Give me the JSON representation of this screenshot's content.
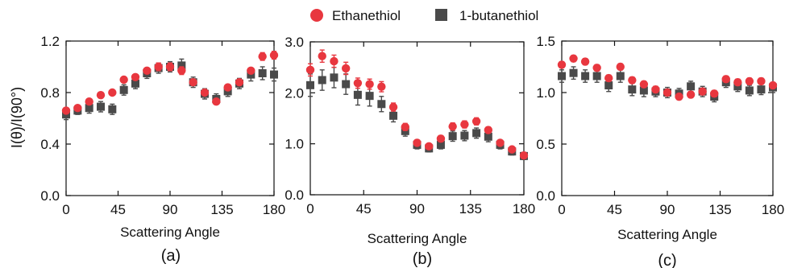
{
  "legend": {
    "items": [
      {
        "name": "Ethanethiol",
        "color": "#e8373f",
        "marker": "circle"
      },
      {
        "name": "1-butanethiol",
        "color": "#4a4a4a",
        "marker": "square"
      }
    ]
  },
  "ylabel": "I(θ)/I(90°)",
  "chart_data": [
    {
      "type": "scatter",
      "panel_label": "(a)",
      "xlabel": "Scattering Angle",
      "ylabel": "I(θ)/I(90°)",
      "xlim": [
        0,
        180
      ],
      "ylim": [
        0,
        1.2
      ],
      "xticks": [
        0,
        45,
        90,
        135,
        180
      ],
      "xtick_labels": [
        "0",
        "45",
        "90",
        "135",
        "180"
      ],
      "yticks": [
        0,
        0.4,
        0.8,
        1.2
      ],
      "ytick_labels": [
        "0.0",
        "0.4",
        "0.8",
        "1.2"
      ],
      "series": [
        {
          "name": "Ethanethiol",
          "x": [
            0,
            10,
            20,
            30,
            40,
            50,
            60,
            70,
            80,
            90,
            100,
            110,
            120,
            130,
            140,
            150,
            160,
            170,
            180
          ],
          "y": [
            0.66,
            0.68,
            0.73,
            0.78,
            0.8,
            0.9,
            0.92,
            0.97,
            1.0,
            1.0,
            0.97,
            0.88,
            0.8,
            0.73,
            0.84,
            0.88,
            0.97,
            1.08,
            1.09
          ],
          "err": [
            0.02,
            0.02,
            0.02,
            0.02,
            0.02,
            0.02,
            0.02,
            0.02,
            0.03,
            0.03,
            0.03,
            0.02,
            0.02,
            0.02,
            0.02,
            0.02,
            0.02,
            0.03,
            0.03
          ]
        },
        {
          "name": "1-butanethiol",
          "x": [
            0,
            10,
            20,
            30,
            40,
            50,
            60,
            70,
            80,
            90,
            100,
            110,
            120,
            130,
            140,
            150,
            160,
            170,
            180
          ],
          "y": [
            0.63,
            0.66,
            0.68,
            0.69,
            0.67,
            0.82,
            0.87,
            0.95,
            0.99,
            1.0,
            1.01,
            0.88,
            0.79,
            0.75,
            0.81,
            0.87,
            0.94,
            0.95,
            0.94
          ],
          "err": [
            0.04,
            0.03,
            0.04,
            0.04,
            0.04,
            0.04,
            0.04,
            0.04,
            0.04,
            0.04,
            0.05,
            0.04,
            0.04,
            0.04,
            0.04,
            0.04,
            0.05,
            0.05,
            0.05
          ]
        }
      ]
    },
    {
      "type": "scatter",
      "panel_label": "(b)",
      "xlabel": "Scattering Angle",
      "ylabel": "",
      "xlim": [
        0,
        180
      ],
      "ylim": [
        0,
        3.0
      ],
      "xticks": [
        0,
        45,
        90,
        135,
        180
      ],
      "xtick_labels": [
        "0",
        "45",
        "90",
        "135",
        "180"
      ],
      "yticks": [
        0,
        1.0,
        2.0,
        3.0
      ],
      "ytick_labels": [
        "0.0",
        "1.0",
        "2.0",
        "3.0"
      ],
      "series": [
        {
          "name": "Ethanethiol",
          "x": [
            0,
            10,
            20,
            30,
            40,
            50,
            60,
            70,
            80,
            90,
            100,
            110,
            120,
            130,
            140,
            150,
            160,
            170,
            180
          ],
          "y": [
            2.45,
            2.72,
            2.62,
            2.48,
            2.19,
            2.17,
            2.12,
            1.72,
            1.33,
            1.02,
            0.95,
            1.1,
            1.34,
            1.38,
            1.44,
            1.27,
            1.02,
            0.89,
            0.77
          ],
          "err": [
            0.12,
            0.12,
            0.12,
            0.12,
            0.1,
            0.1,
            0.1,
            0.08,
            0.07,
            0.06,
            0.05,
            0.06,
            0.07,
            0.07,
            0.07,
            0.06,
            0.05,
            0.05,
            0.05
          ]
        },
        {
          "name": "1-butanethiol",
          "x": [
            0,
            10,
            20,
            30,
            40,
            50,
            60,
            70,
            80,
            90,
            100,
            110,
            120,
            130,
            140,
            150,
            160,
            170,
            180
          ],
          "y": [
            2.15,
            2.25,
            2.3,
            2.17,
            1.96,
            1.94,
            1.78,
            1.55,
            1.25,
            0.98,
            0.91,
            0.98,
            1.15,
            1.16,
            1.21,
            1.14,
            0.98,
            0.85,
            0.76
          ],
          "err": [
            0.22,
            0.2,
            0.2,
            0.2,
            0.2,
            0.2,
            0.15,
            0.12,
            0.1,
            0.08,
            0.07,
            0.08,
            0.1,
            0.1,
            0.1,
            0.1,
            0.08,
            0.07,
            0.07
          ]
        }
      ]
    },
    {
      "type": "scatter",
      "panel_label": "(c)",
      "xlabel": "Scattering Angle",
      "ylabel": "",
      "xlim": [
        0,
        180
      ],
      "ylim": [
        0,
        1.5
      ],
      "xticks": [
        0,
        45,
        90,
        135,
        180
      ],
      "xtick_labels": [
        "0",
        "45",
        "90",
        "135",
        "180"
      ],
      "yticks": [
        0,
        0.5,
        1.0,
        1.5
      ],
      "ytick_labels": [
        "0.0",
        "0.5",
        "1.0",
        "1.5"
      ],
      "series": [
        {
          "name": "Ethanethiol",
          "x": [
            0,
            10,
            20,
            30,
            40,
            50,
            60,
            70,
            80,
            90,
            100,
            110,
            120,
            130,
            140,
            150,
            160,
            170,
            180
          ],
          "y": [
            1.27,
            1.33,
            1.3,
            1.24,
            1.14,
            1.25,
            1.12,
            1.08,
            1.03,
            1.0,
            0.96,
            0.98,
            1.01,
            0.99,
            1.13,
            1.1,
            1.11,
            1.11,
            1.07
          ],
          "err": [
            0.03,
            0.03,
            0.03,
            0.03,
            0.03,
            0.03,
            0.03,
            0.03,
            0.03,
            0.03,
            0.03,
            0.03,
            0.03,
            0.03,
            0.03,
            0.03,
            0.03,
            0.03,
            0.03
          ]
        },
        {
          "name": "1-butanethiol",
          "x": [
            0,
            10,
            20,
            30,
            40,
            50,
            60,
            70,
            80,
            90,
            100,
            110,
            120,
            130,
            140,
            150,
            160,
            170,
            180
          ],
          "y": [
            1.16,
            1.19,
            1.16,
            1.16,
            1.07,
            1.16,
            1.03,
            1.02,
            1.01,
            1.0,
            0.99,
            1.06,
            1.01,
            0.96,
            1.1,
            1.06,
            1.02,
            1.03,
            1.05
          ],
          "err": [
            0.06,
            0.06,
            0.06,
            0.06,
            0.06,
            0.06,
            0.06,
            0.06,
            0.05,
            0.05,
            0.05,
            0.05,
            0.05,
            0.05,
            0.05,
            0.05,
            0.05,
            0.05,
            0.05
          ]
        }
      ]
    }
  ]
}
